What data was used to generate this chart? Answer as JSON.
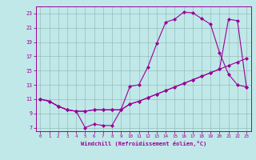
{
  "xlabel": "Windchill (Refroidissement éolien,°C)",
  "xlim": [
    -0.5,
    23.5
  ],
  "ylim": [
    6.5,
    24.0
  ],
  "xticks": [
    0,
    1,
    2,
    3,
    4,
    5,
    6,
    7,
    8,
    9,
    10,
    11,
    12,
    13,
    14,
    15,
    16,
    17,
    18,
    19,
    20,
    21,
    22,
    23
  ],
  "yticks": [
    7,
    9,
    11,
    13,
    15,
    17,
    19,
    21,
    23
  ],
  "bg_color": "#c0e8e8",
  "line_color": "#990099",
  "grid_color": "#99bbbb",
  "curve1_x": [
    0,
    1,
    2,
    3,
    4,
    5,
    6,
    7,
    8,
    9,
    10,
    11,
    12,
    13,
    14,
    15,
    16,
    17,
    18,
    19,
    20,
    21,
    22,
    23
  ],
  "curve1_y": [
    11.0,
    10.7,
    10.0,
    9.5,
    9.3,
    7.0,
    7.5,
    7.3,
    7.3,
    9.5,
    12.8,
    13.0,
    15.5,
    18.8,
    21.8,
    22.2,
    23.2,
    23.1,
    22.3,
    21.5,
    17.5,
    14.5,
    13.0,
    12.7
  ],
  "curve2_x": [
    0,
    1,
    2,
    3,
    4,
    5,
    6,
    7,
    8,
    9,
    10,
    11,
    12,
    13,
    14,
    15,
    16,
    17,
    18,
    19,
    20,
    21,
    22,
    23
  ],
  "curve2_y": [
    11.0,
    10.7,
    10.0,
    9.5,
    9.3,
    9.3,
    9.5,
    9.5,
    9.5,
    9.5,
    10.3,
    10.7,
    11.2,
    11.7,
    12.2,
    12.7,
    13.2,
    13.7,
    14.2,
    14.7,
    15.2,
    15.7,
    16.2,
    16.7
  ],
  "curve3_x": [
    0,
    1,
    2,
    3,
    4,
    5,
    6,
    7,
    8,
    9,
    10,
    11,
    12,
    13,
    14,
    15,
    16,
    17,
    18,
    19,
    20,
    21,
    22,
    23
  ],
  "curve3_y": [
    11.0,
    10.7,
    10.0,
    9.5,
    9.3,
    9.3,
    9.5,
    9.5,
    9.5,
    9.5,
    10.3,
    10.7,
    11.2,
    11.7,
    12.2,
    12.7,
    13.2,
    13.7,
    14.2,
    14.7,
    15.2,
    22.2,
    22.0,
    12.7
  ]
}
